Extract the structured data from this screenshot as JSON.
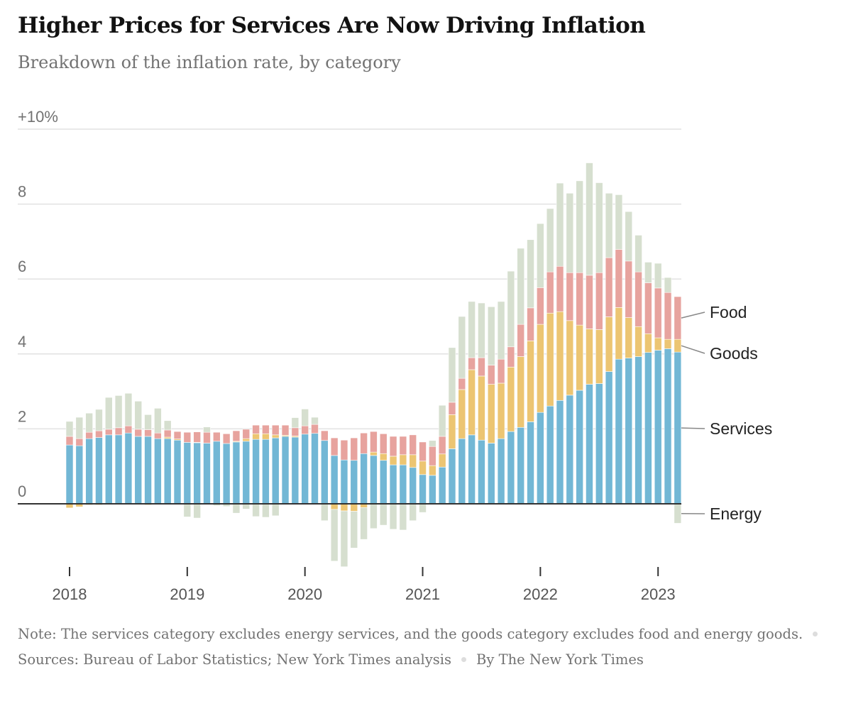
{
  "title": "Higher Prices for Services Are Now Driving Inflation",
  "subtitle": "Breakdown of the inflation rate, by category",
  "footer": {
    "note": "Note: The services category excludes energy services, and the goods category excludes food and energy goods.",
    "sources": "Sources: Bureau of Labor Statistics; New York Times analysis",
    "byline": "By The New York Times"
  },
  "chart_data": {
    "type": "bar",
    "stacked": true,
    "title": "Higher Prices for Services Are Now Driving Inflation",
    "subtitle": "Breakdown of the inflation rate, by category",
    "xlabel": "",
    "ylabel": "",
    "ylim": [
      -1.9,
      10
    ],
    "y_ticks": [
      0,
      2,
      4,
      6,
      8,
      10
    ],
    "y_tick_labels": [
      "0",
      "2",
      "4",
      "6",
      "8",
      "+10%"
    ],
    "x_ticks": [
      "2018",
      "2019",
      "2020",
      "2021",
      "2022",
      "2023"
    ],
    "grid": true,
    "legend": "direct labels at right",
    "start_month": "2018-01",
    "end_month": "2023-03",
    "series": [
      {
        "name": "Services",
        "color": "#72b7d5",
        "values": [
          1.57,
          1.55,
          1.74,
          1.77,
          1.84,
          1.84,
          1.89,
          1.8,
          1.8,
          1.74,
          1.74,
          1.7,
          1.64,
          1.63,
          1.62,
          1.67,
          1.61,
          1.65,
          1.67,
          1.72,
          1.72,
          1.76,
          1.8,
          1.78,
          1.86,
          1.88,
          1.69,
          1.29,
          1.17,
          1.16,
          1.34,
          1.29,
          1.16,
          1.04,
          1.04,
          0.97,
          0.78,
          0.76,
          0.98,
          1.47,
          1.74,
          1.84,
          1.7,
          1.62,
          1.74,
          1.93,
          2.04,
          2.19,
          2.44,
          2.61,
          2.76,
          2.9,
          3.03,
          3.19,
          3.21,
          3.53,
          3.86,
          3.89,
          3.93,
          4.04,
          4.1,
          4.14,
          4.05
        ]
      },
      {
        "name": "Goods",
        "color": "#ecc572",
        "values": [
          -0.11,
          -0.08,
          -0.03,
          -0.03,
          -0.02,
          -0.02,
          0,
          -0.02,
          -0.03,
          0,
          0.04,
          0.03,
          0,
          0.01,
          0,
          0,
          0,
          0.02,
          0.07,
          0.15,
          0.15,
          0.08,
          0.03,
          0.03,
          -0.02,
          0,
          0,
          -0.15,
          -0.19,
          -0.2,
          -0.1,
          0.09,
          0.18,
          0.23,
          0.27,
          0.34,
          0.36,
          0.26,
          0.35,
          0.91,
          1.31,
          1.74,
          1.71,
          1.57,
          1.48,
          1.72,
          1.89,
          2.16,
          2.35,
          2.48,
          2.37,
          1.99,
          1.74,
          1.48,
          1.44,
          1.46,
          1.38,
          1.08,
          0.8,
          0.5,
          0.33,
          0.25,
          0.34
        ]
      },
      {
        "name": "Food",
        "color": "#e7a39e",
        "values": [
          0.23,
          0.19,
          0.17,
          0.18,
          0.15,
          0.19,
          0.19,
          0.19,
          0.18,
          0.15,
          0.19,
          0.2,
          0.27,
          0.28,
          0.29,
          0.24,
          0.26,
          0.28,
          0.25,
          0.23,
          0.23,
          0.26,
          0.27,
          0.22,
          0.22,
          0.24,
          0.26,
          0.47,
          0.53,
          0.6,
          0.55,
          0.55,
          0.53,
          0.53,
          0.49,
          0.53,
          0.51,
          0.51,
          0.47,
          0.33,
          0.3,
          0.32,
          0.49,
          0.51,
          0.64,
          0.54,
          0.86,
          0.88,
          0.98,
          1.1,
          1.21,
          1.28,
          1.4,
          1.43,
          1.52,
          1.58,
          1.55,
          1.51,
          1.46,
          1.36,
          1.33,
          1.25,
          1.14
        ]
      },
      {
        "name": "Energy",
        "color": "#d6dfcf",
        "values": [
          0.4,
          0.57,
          0.51,
          0.57,
          0.85,
          0.86,
          0.87,
          0.75,
          0.4,
          0.66,
          0.25,
          0,
          -0.35,
          -0.38,
          0.14,
          -0.05,
          -0.07,
          -0.25,
          -0.14,
          -0.34,
          -0.36,
          -0.32,
          -0.02,
          0.27,
          0.45,
          0.19,
          -0.45,
          -1.38,
          -1.49,
          -0.98,
          -0.85,
          -0.66,
          -0.57,
          -0.68,
          -0.7,
          -0.45,
          -0.23,
          0.16,
          0.83,
          1.46,
          1.65,
          1.5,
          1.46,
          1.56,
          1.54,
          2.02,
          2.03,
          1.82,
          1.71,
          1.69,
          2.22,
          2.12,
          2.45,
          3.0,
          2.4,
          1.72,
          1.46,
          1.32,
          0.98,
          0.55,
          0.66,
          0.4,
          -0.52
        ]
      }
    ]
  }
}
